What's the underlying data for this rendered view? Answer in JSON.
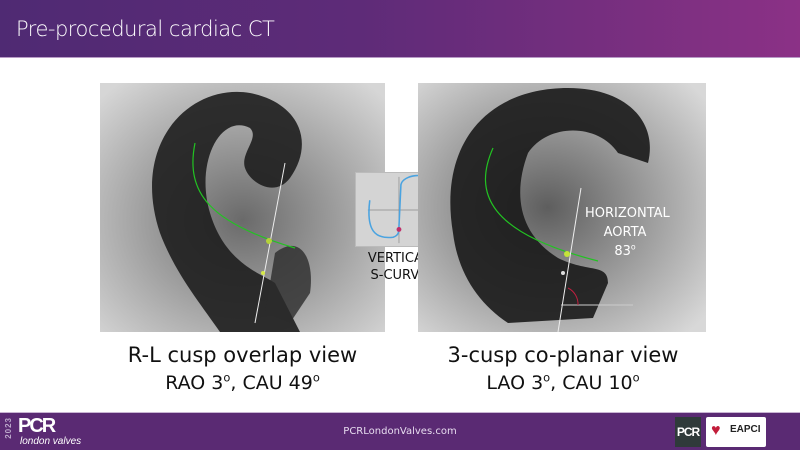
{
  "header": {
    "title": "Pre-procedural cardiac CT"
  },
  "left_panel": {
    "caption_line1": "R-L cusp overlap view",
    "caption_line2_prefix": "RAO 3",
    "caption_line2_sup": "o",
    "caption_line2_suffix": ", CAU 49",
    "caption_line2_sup2": "o"
  },
  "inset": {
    "label_line1": "VERTICAL",
    "label_line2": "S-CURVE"
  },
  "right_panel": {
    "overlay_line1": "HORIZONTAL",
    "overlay_line2": "AORTA",
    "overlay_value": "83",
    "overlay_sup": "o",
    "caption_line1": "3-cusp co-planar view",
    "caption_line2_prefix": "LAO 3",
    "caption_line2_sup": "o",
    "caption_line2_suffix": ", CAU 10",
    "caption_line2_sup2": "o"
  },
  "footer": {
    "year": "2023",
    "logo_main": "PCR",
    "logo_sub": "london valves",
    "website": "PCRLondonValves.com",
    "partner1": "PCR",
    "partner2": "EAPCI"
  },
  "colors": {
    "header_start": "#4f2a73",
    "header_end": "#8b3186",
    "footer": "#5a2a73",
    "centerline": "#22c322"
  }
}
